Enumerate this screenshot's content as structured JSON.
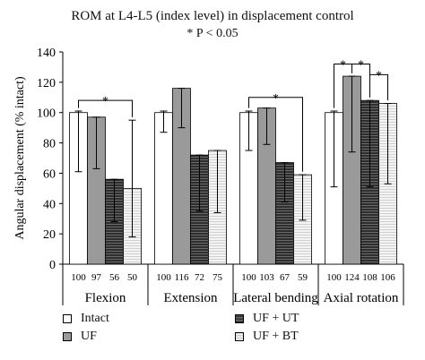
{
  "chart_data": {
    "type": "bar",
    "title": "ROM at L4-L5 (index level) in displacement control",
    "subtitle": "* P < 0.05",
    "ylabel": "Angular displacement (% intact)",
    "xlabel": "",
    "ylim": [
      0,
      140
    ],
    "yticks": [
      0,
      20,
      40,
      60,
      80,
      100,
      120,
      140
    ],
    "grid": false,
    "legend_position": "bottom",
    "categories": [
      "Flexion",
      "Extension",
      "Lateral bending",
      "Axial rotation"
    ],
    "series": [
      {
        "name": "Intact",
        "values": [
          100,
          100,
          100,
          100
        ],
        "err_low": [
          61,
          87,
          75,
          51
        ],
        "err_high": [
          101,
          101,
          101,
          101
        ],
        "color": "#ffffff",
        "pattern": "none"
      },
      {
        "name": "UF",
        "values": [
          97,
          116,
          103,
          124
        ],
        "err_low": [
          63,
          90,
          79,
          74
        ],
        "err_high": [
          97,
          116,
          103,
          124
        ],
        "color": "#9a9a9a",
        "pattern": "none"
      },
      {
        "name": "UF + UT",
        "values": [
          56,
          72,
          67,
          108
        ],
        "err_low": [
          28,
          35,
          41,
          51
        ],
        "err_high": [
          56,
          72,
          67,
          108
        ],
        "color": "#3a3a3a",
        "pattern": "hlines-dark"
      },
      {
        "name": "UF + BT",
        "values": [
          50,
          75,
          59,
          106
        ],
        "err_low": [
          18,
          34,
          29,
          53
        ],
        "err_high": [
          95,
          75,
          59,
          106
        ],
        "color": "#f2f2f2",
        "pattern": "hlines-light"
      }
    ],
    "value_labels": [
      [
        "100",
        "97",
        "56",
        "50"
      ],
      [
        "100",
        "116",
        "72",
        "75"
      ],
      [
        "100",
        "103",
        "67",
        "59"
      ],
      [
        "100",
        "124",
        "108",
        "106"
      ]
    ],
    "significance": [
      {
        "category": 0,
        "from": 0,
        "to": 3,
        "label": "*",
        "y": 108
      },
      {
        "category": 2,
        "from": 0,
        "to": 3,
        "label": "*",
        "y": 110
      },
      {
        "category": 3,
        "from": 0,
        "to": 1,
        "label": "*",
        "y": 132
      },
      {
        "category": 3,
        "from": 1,
        "to": 2,
        "label": "*",
        "y": 132
      },
      {
        "category": 3,
        "from": 2,
        "to": 3,
        "label": "*",
        "y": 125
      }
    ]
  }
}
